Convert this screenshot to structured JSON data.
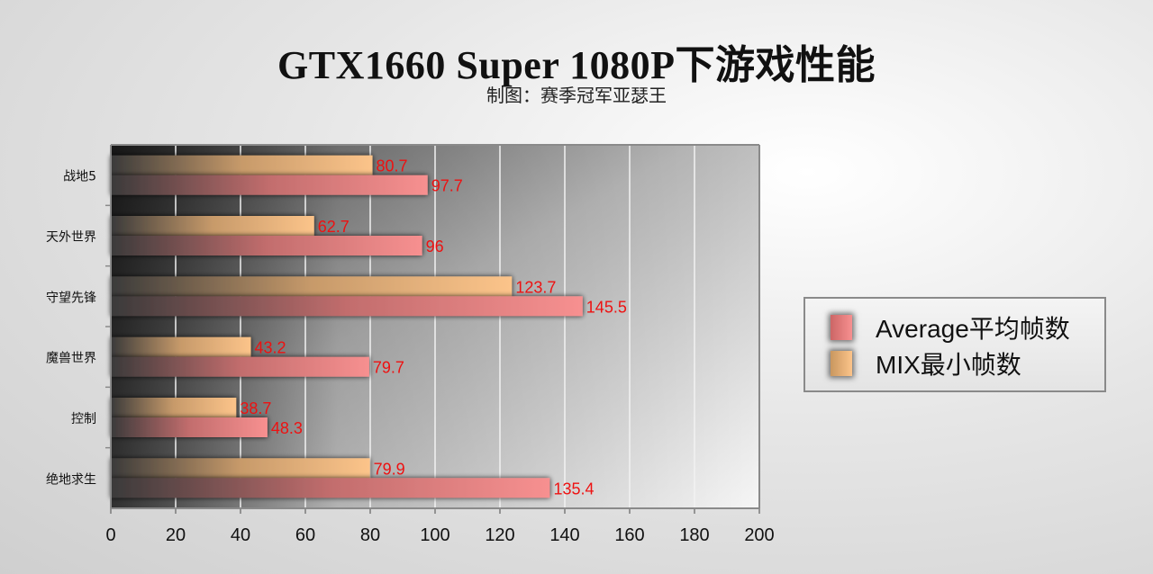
{
  "title": "GTX1660 Super 1080P下游戏性能",
  "subtitle": "制图：赛季冠军亚瑟王",
  "chart_data": {
    "type": "bar",
    "orientation": "horizontal",
    "categories": [
      "战地5",
      "天外世界",
      "守望先锋",
      "魔兽世界",
      "控制",
      "绝地求生"
    ],
    "series": [
      {
        "name": "MIX最小帧数",
        "values": [
          80.7,
          62.7,
          123.7,
          43.2,
          38.7,
          79.9
        ],
        "color": "#fcc48a"
      },
      {
        "name": "Average平均帧数",
        "values": [
          97.7,
          96,
          145.5,
          79.7,
          48.3,
          135.4
        ],
        "color": "#f79090"
      }
    ],
    "xlim": [
      0,
      200
    ],
    "xticks": [
      "0",
      "20",
      "40",
      "60",
      "80",
      "100",
      "120",
      "140",
      "160",
      "180",
      "200"
    ],
    "grid": true,
    "legend_position": "right",
    "data_label_color": "#ee1111"
  },
  "legend": {
    "items": [
      {
        "label": "Average平均帧数",
        "color": "#f79090"
      },
      {
        "label": "MIX最小帧数",
        "color": "#fcc48a"
      }
    ]
  }
}
